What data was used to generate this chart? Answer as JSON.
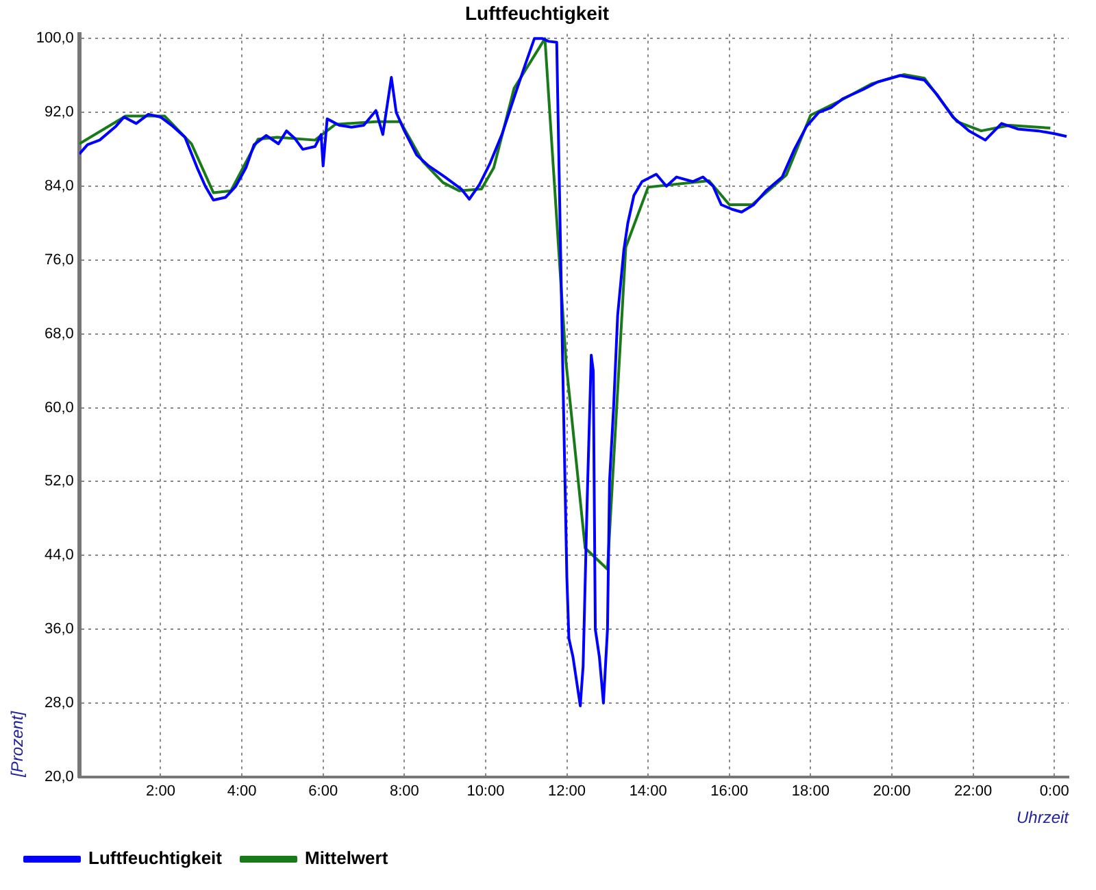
{
  "chart_data": {
    "type": "line",
    "title": "Luftfeuchtigkeit",
    "xlabel": "Uhrzeit",
    "ylabel": "[Prozent]",
    "xlim": [
      0,
      24.35
    ],
    "xticks": [
      {
        "value": 0,
        "label": null
      },
      {
        "value": 2,
        "label": "2:00"
      },
      {
        "value": 4,
        "label": "4:00"
      },
      {
        "value": 6,
        "label": "6:00"
      },
      {
        "value": 8,
        "label": "8:00"
      },
      {
        "value": 10,
        "label": "10:00"
      },
      {
        "value": 12,
        "label": "12:00"
      },
      {
        "value": 14,
        "label": "14:00"
      },
      {
        "value": 16,
        "label": "16:00"
      },
      {
        "value": 18,
        "label": "18:00"
      },
      {
        "value": 20,
        "label": "20:00"
      },
      {
        "value": 22,
        "label": "22:00"
      },
      {
        "value": 24,
        "label": "0:00"
      }
    ],
    "ylim": [
      20,
      100.5
    ],
    "yticks": [
      {
        "value": 20,
        "label": "20,0"
      },
      {
        "value": 28,
        "label": "28,0"
      },
      {
        "value": 36,
        "label": "36,0"
      },
      {
        "value": 44,
        "label": "44,0"
      },
      {
        "value": 52,
        "label": "52,0"
      },
      {
        "value": 60,
        "label": "60,0"
      },
      {
        "value": 68,
        "label": "68,0"
      },
      {
        "value": 76,
        "label": "76,0"
      },
      {
        "value": 84,
        "label": "84,0"
      },
      {
        "value": 92,
        "label": "92,0"
      },
      {
        "value": 100,
        "label": "100,0"
      }
    ],
    "grid": true,
    "legend": "bottom left",
    "marker": "none",
    "line_style": "solid",
    "series": [
      {
        "name": "Luftfeuchtigkeit",
        "color": "#0000ff",
        "x": [
          0,
          0.2,
          0.5,
          0.9,
          1.1,
          1.4,
          1.7,
          2.0,
          2.3,
          2.6,
          2.9,
          3.1,
          3.3,
          3.6,
          3.85,
          4.1,
          4.3,
          4.6,
          4.9,
          5.1,
          5.3,
          5.5,
          5.8,
          5.95,
          6.0,
          6.1,
          6.4,
          6.7,
          7.0,
          7.3,
          7.47,
          7.68,
          7.8,
          8.0,
          8.3,
          8.6,
          9.0,
          9.4,
          9.6,
          9.85,
          10.1,
          10.4,
          10.7,
          11.0,
          11.2,
          11.4,
          11.55,
          11.75,
          11.9,
          12.0,
          12.05,
          12.15,
          12.33,
          12.4,
          12.5,
          12.6,
          12.65,
          12.7,
          12.8,
          12.9,
          13.0,
          13.05,
          13.15,
          13.25,
          13.4,
          13.5,
          13.65,
          13.85,
          14.2,
          14.45,
          14.7,
          15.1,
          15.35,
          15.6,
          15.8,
          16.07,
          16.3,
          16.6,
          16.9,
          17.3,
          17.6,
          17.9,
          18.2,
          18.5,
          18.8,
          19.3,
          19.65,
          20.2,
          20.8,
          21.1,
          21.5,
          21.9,
          22.3,
          22.7,
          23.1,
          23.6,
          24.0,
          24.3
        ],
        "values": [
          87.5,
          88.5,
          89,
          90.5,
          91.5,
          90.8,
          91.8,
          91.5,
          90.5,
          89.3,
          86,
          84,
          82.5,
          82.8,
          84,
          86,
          88.5,
          89.5,
          88.6,
          90,
          89.2,
          88,
          88.3,
          89.6,
          86.2,
          91.3,
          90.6,
          90.4,
          90.6,
          92.2,
          89.6,
          95.8,
          92,
          90,
          87.4,
          86.2,
          85,
          83.7,
          82.6,
          84.2,
          86.4,
          89.6,
          93.6,
          97.5,
          100,
          100,
          99.7,
          99.6,
          64,
          41.6,
          35,
          33,
          27.7,
          32,
          50,
          65.7,
          64,
          36,
          33,
          28,
          36,
          52,
          60,
          70,
          77,
          80,
          83,
          84.5,
          85.3,
          84,
          85,
          84.5,
          85,
          84,
          82,
          81.5,
          81.2,
          82,
          83.5,
          85,
          88,
          90.5,
          92,
          92.5,
          93.5,
          94.5,
          95.3,
          96,
          95.5,
          94,
          91.5,
          90,
          89,
          90.8,
          90.2,
          90,
          89.7,
          89.4
        ]
      },
      {
        "name": "Mittelwert",
        "color": "#1a7a1a",
        "x": [
          0,
          1.14,
          2.1,
          2.76,
          3.3,
          3.73,
          4.4,
          4.87,
          5.8,
          6.3,
          7.3,
          7.9,
          8.45,
          8.95,
          9.35,
          9.9,
          10.2,
          10.7,
          11.46,
          11.98,
          12.45,
          13.0,
          13.45,
          14.0,
          15.5,
          16.0,
          16.56,
          17.4,
          18.0,
          18.7,
          19.5,
          20.3,
          20.8,
          21.6,
          22.2,
          22.9,
          23.9
        ],
        "values": [
          88.6,
          91.6,
          91.6,
          88.6,
          83.3,
          83.5,
          89.1,
          89.3,
          89,
          90.7,
          91,
          91,
          86.7,
          84.4,
          83.5,
          83.7,
          86,
          94.6,
          100,
          64.9,
          44.8,
          42.5,
          77.4,
          83.9,
          84.6,
          82,
          82,
          85.2,
          91.7,
          93.2,
          95.1,
          96.1,
          95.7,
          91,
          90,
          90.6,
          90.3
        ]
      }
    ]
  }
}
